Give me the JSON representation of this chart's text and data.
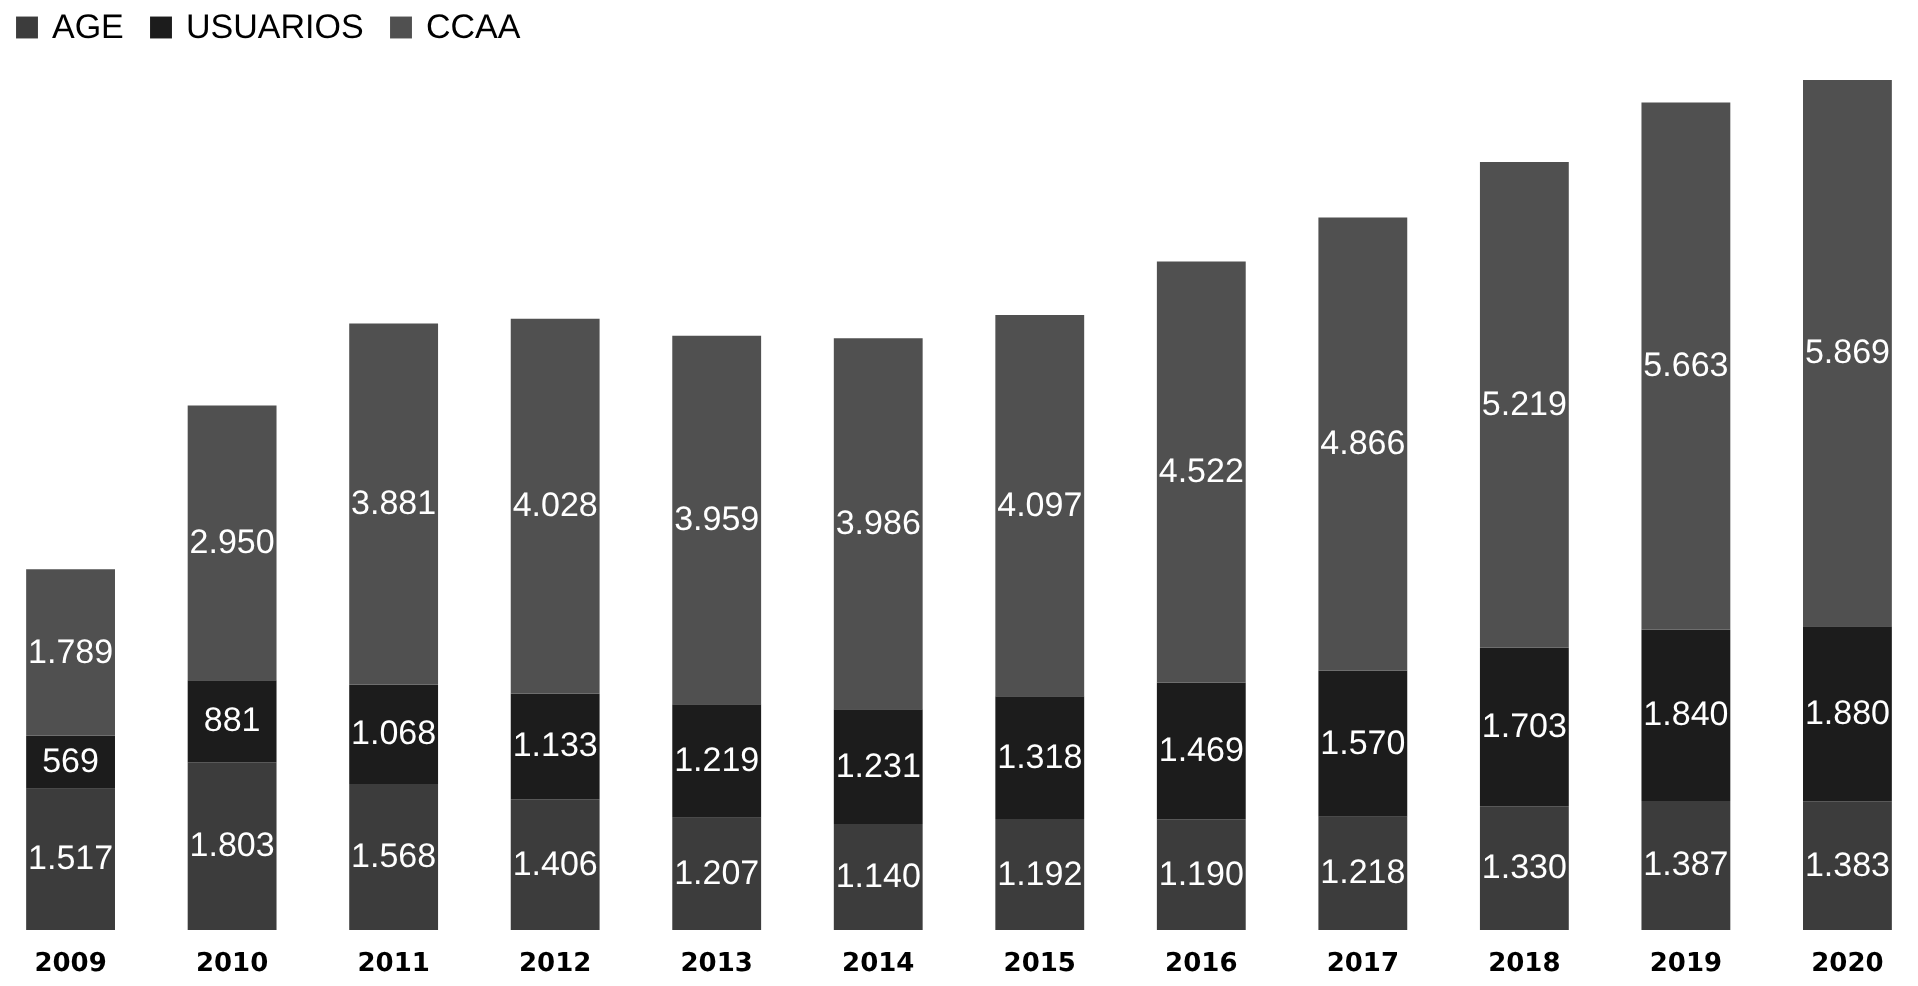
{
  "chart_data": {
    "type": "bar",
    "stacked": true,
    "legend": "top",
    "categories": [
      "2009",
      "2010",
      "2011",
      "2012",
      "2013",
      "2014",
      "2015",
      "2016",
      "2017",
      "2018",
      "2019",
      "2020"
    ],
    "series": [
      {
        "name": "AGE",
        "color": "#3c3c3c",
        "values": [
          1517,
          1803,
          1568,
          1406,
          1207,
          1140,
          1192,
          1190,
          1218,
          1330,
          1387,
          1383
        ],
        "value_labels": [
          "1.517",
          "1.803",
          "1.568",
          "1.406",
          "1.207",
          "1.140",
          "1.192",
          "1.190",
          "1.218",
          "1.330",
          "1.387",
          "1.383"
        ]
      },
      {
        "name": "USUARIOS",
        "color": "#1c1c1c",
        "values": [
          569,
          881,
          1068,
          1133,
          1219,
          1231,
          1318,
          1469,
          1570,
          1703,
          1840,
          1880
        ],
        "value_labels": [
          "569",
          "881",
          "1.068",
          "1.133",
          "1.219",
          "1.231",
          "1.318",
          "1.469",
          "1.570",
          "1.703",
          "1.840",
          "1.880"
        ]
      },
      {
        "name": "CCAA",
        "color": "#505050",
        "values": [
          1789,
          2950,
          3881,
          4028,
          3959,
          3986,
          4097,
          4522,
          4866,
          5219,
          5663,
          5869
        ],
        "value_labels": [
          "1.789",
          "2.950",
          "3.881",
          "4.028",
          "3.959",
          "3.986",
          "4.097",
          "4.522",
          "4.866",
          "5.219",
          "5.663",
          "5.869"
        ]
      }
    ]
  }
}
